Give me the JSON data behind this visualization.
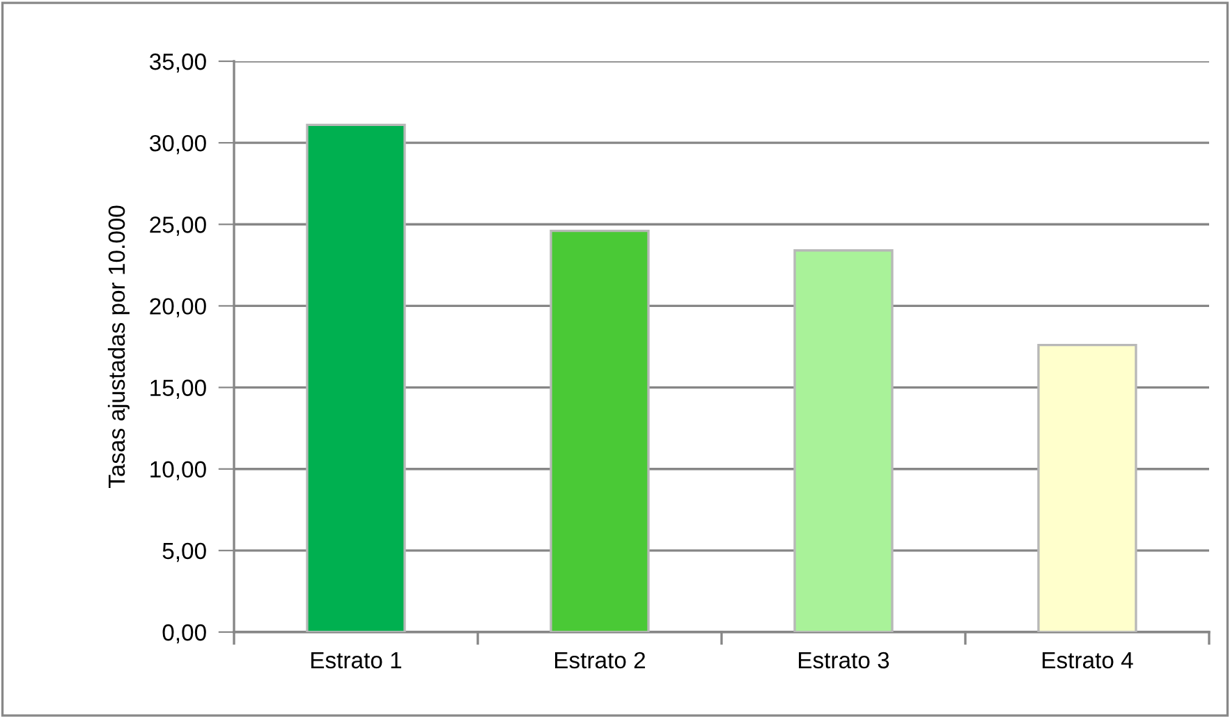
{
  "chart_data": {
    "type": "bar",
    "ylabel": "Tasas ajustadas por 10.000",
    "categories": [
      "Estrato 1",
      "Estrato 2",
      "Estrato 3",
      "Estrato 4"
    ],
    "values": [
      31.1,
      24.6,
      23.4,
      17.6
    ],
    "colors": [
      "#00b050",
      "#4ac936",
      "#a9f299",
      "#ffffcc"
    ],
    "ylim": [
      0,
      35
    ],
    "yticks": [
      {
        "value": 0,
        "label": "0,00"
      },
      {
        "value": 5,
        "label": "5,00"
      },
      {
        "value": 10,
        "label": "10,00"
      },
      {
        "value": 15,
        "label": "15,00"
      },
      {
        "value": 20,
        "label": "20,00"
      },
      {
        "value": 25,
        "label": "25,00"
      },
      {
        "value": 30,
        "label": "30,00"
      },
      {
        "value": 35,
        "label": "35,00"
      }
    ],
    "grid": "y",
    "legend": false
  }
}
